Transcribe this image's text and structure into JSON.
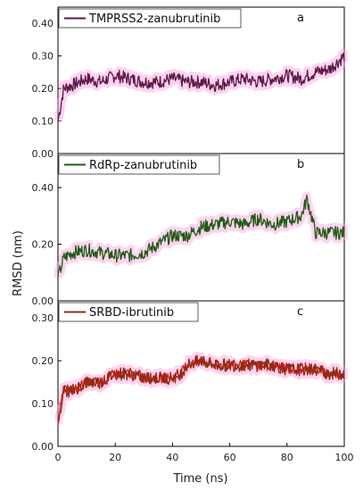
{
  "chart_data": {
    "type": "line",
    "xlabel": "Time (ns)",
    "ylabel": "RMSD  (nm)",
    "xlim": [
      0,
      100
    ],
    "xticks": [
      "0",
      "20",
      "40",
      "60",
      "80",
      "100"
    ],
    "panels": [
      {
        "letter": "a",
        "legend": "TMPRSS2-zanubrutinib",
        "color": "#5a1a44",
        "band_color": "#ff9ee0",
        "ylim": [
          0.0,
          0.45
        ],
        "yticks": [
          "0.00",
          "0.10",
          "0.20",
          "0.30",
          "0.40"
        ],
        "x": [
          0,
          2,
          5,
          10,
          15,
          20,
          25,
          30,
          35,
          40,
          45,
          50,
          55,
          60,
          65,
          70,
          75,
          80,
          85,
          90,
          95,
          100
        ],
        "y": [
          0.1,
          0.2,
          0.21,
          0.23,
          0.22,
          0.24,
          0.23,
          0.22,
          0.22,
          0.23,
          0.22,
          0.22,
          0.21,
          0.22,
          0.23,
          0.22,
          0.23,
          0.24,
          0.23,
          0.25,
          0.26,
          0.3
        ]
      },
      {
        "letter": "b",
        "legend": "RdRp-zanubrutinib",
        "color": "#1f5c12",
        "band_color": "#ff9ee0",
        "ylim": [
          0.0,
          0.52
        ],
        "yticks": [
          "0.00",
          "0.20",
          "0.40"
        ],
        "x": [
          0,
          2,
          5,
          10,
          15,
          20,
          25,
          30,
          35,
          40,
          45,
          50,
          55,
          60,
          65,
          70,
          75,
          80,
          85,
          87,
          90,
          95,
          100
        ],
        "y": [
          0.08,
          0.15,
          0.17,
          0.18,
          0.17,
          0.16,
          0.16,
          0.17,
          0.2,
          0.23,
          0.23,
          0.26,
          0.27,
          0.28,
          0.27,
          0.29,
          0.27,
          0.28,
          0.3,
          0.36,
          0.24,
          0.24,
          0.24
        ]
      },
      {
        "letter": "c",
        "legend": "SRBD-ibrutinib",
        "color": "#8a2e14",
        "color2": "#e01010",
        "band_color": "#ff9ee0",
        "ylim": [
          0.0,
          0.34
        ],
        "yticks": [
          "0.00",
          "0.10",
          "0.20",
          "0.30"
        ],
        "x": [
          0,
          2,
          5,
          10,
          15,
          20,
          25,
          30,
          35,
          40,
          43,
          45,
          50,
          55,
          60,
          65,
          70,
          75,
          80,
          85,
          90,
          95,
          100
        ],
        "y": [
          0.06,
          0.13,
          0.13,
          0.15,
          0.15,
          0.17,
          0.17,
          0.16,
          0.16,
          0.16,
          0.17,
          0.19,
          0.2,
          0.19,
          0.19,
          0.19,
          0.19,
          0.19,
          0.18,
          0.18,
          0.18,
          0.17,
          0.17
        ]
      }
    ]
  }
}
